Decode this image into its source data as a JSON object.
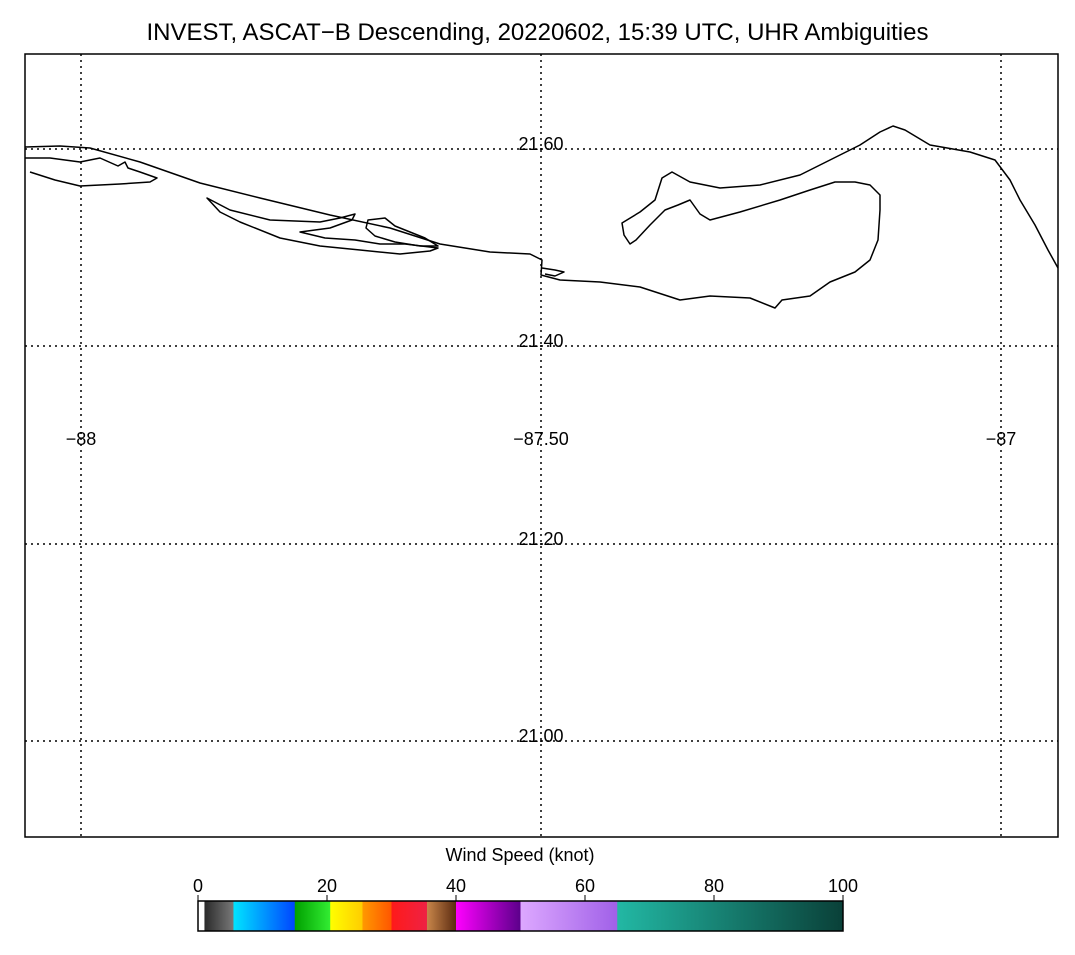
{
  "title": "INVEST, ASCAT−B Descending, 20220602, 15:39 UTC, UHR Ambiguities",
  "map": {
    "lat_labels": [
      "21.60",
      "21.40",
      "21.20",
      "21.00"
    ],
    "lon_labels": [
      "−88",
      "−87.50",
      "−87"
    ],
    "lat_values": [
      21.6,
      21.4,
      21.2,
      21.0
    ],
    "lon_values": [
      -88,
      -87.5,
      -87
    ],
    "grid": "dotted",
    "coastline_color": "#000000"
  },
  "colorbar": {
    "title": "Wind Speed (knot)",
    "tick_labels": [
      "0",
      "20",
      "40",
      "60",
      "80",
      "100"
    ],
    "range": [
      0,
      100
    ],
    "colors": [
      "#3a3a3a",
      "#00c8ff",
      "#0066ff",
      "#00cc00",
      "#ffff00",
      "#ff8800",
      "#ff2222",
      "#8b4513",
      "#ee00ee",
      "#7a00aa",
      "#d8a0ff",
      "#b066ee",
      "#20b2a0",
      "#0e4a40"
    ]
  }
}
